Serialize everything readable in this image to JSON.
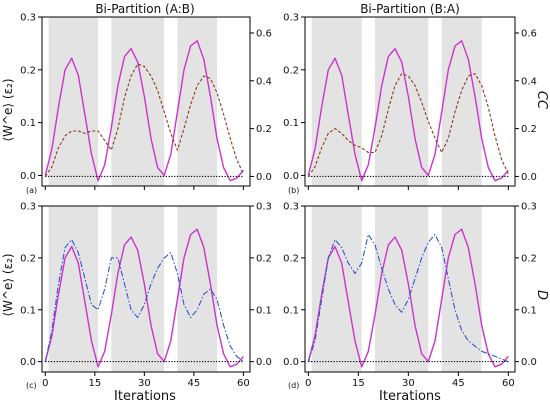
{
  "chart_data": [
    {
      "type": "line",
      "panel_tag": "(a)",
      "title": "Bi-Partition (A:B)",
      "xlabel": "",
      "ylabel": "⟨W^e⟩ (ε₂)",
      "y2label": "",
      "xlim": [
        -1,
        62
      ],
      "ylim": [
        -0.02,
        0.3
      ],
      "y2lim": [
        -0.04,
        0.6667
      ],
      "xticks": [
        0,
        15,
        30,
        45,
        60
      ],
      "xticklabels": [],
      "yticks": [
        0.0,
        0.1,
        0.2,
        0.3
      ],
      "yticklabels": [
        "0.0",
        "0.1",
        "0.2",
        "0.3"
      ],
      "y2ticks": [
        0.0,
        0.2,
        0.4,
        0.6
      ],
      "y2ticklabels": [
        "0.0",
        "0.2",
        "0.4",
        "0.6"
      ],
      "shaded_x_ranges": [
        [
          1,
          16
        ],
        [
          20,
          36
        ],
        [
          40,
          52
        ]
      ],
      "series": [
        {
          "axis": "left",
          "style": "solid",
          "color": "#cc33cc",
          "x": [
            0,
            2,
            4,
            6,
            8,
            10,
            12,
            14,
            16,
            18,
            20,
            22,
            24,
            26,
            28,
            30,
            32,
            34,
            36,
            38,
            40,
            42,
            44,
            46,
            48,
            50,
            52,
            54,
            56,
            58,
            60
          ],
          "y": [
            0.0,
            0.05,
            0.13,
            0.2,
            0.222,
            0.19,
            0.115,
            0.04,
            -0.01,
            0.02,
            0.09,
            0.17,
            0.225,
            0.24,
            0.215,
            0.15,
            0.07,
            0.015,
            0.0,
            0.04,
            0.12,
            0.2,
            0.245,
            0.255,
            0.22,
            0.15,
            0.07,
            0.015,
            -0.01,
            -0.005,
            0.01
          ]
        },
        {
          "axis": "right",
          "style": "dashed",
          "color": "#8b3a1a",
          "x": [
            0,
            2,
            4,
            6,
            8,
            10,
            12,
            14,
            16,
            18,
            20,
            22,
            24,
            26,
            28,
            30,
            32,
            34,
            36,
            38,
            40,
            42,
            44,
            46,
            48,
            50,
            52,
            54,
            56,
            58,
            60
          ],
          "y": [
            0.0,
            0.04,
            0.12,
            0.17,
            0.19,
            0.19,
            0.18,
            0.19,
            0.19,
            0.15,
            0.11,
            0.2,
            0.33,
            0.42,
            0.47,
            0.46,
            0.42,
            0.36,
            0.27,
            0.18,
            0.11,
            0.2,
            0.3,
            0.38,
            0.42,
            0.41,
            0.35,
            0.26,
            0.16,
            0.07,
            0.01
          ]
        },
        {
          "axis": "right",
          "style": "dotted",
          "color": "#000000",
          "x": [
            0,
            60
          ],
          "y": [
            0.0,
            0.0
          ]
        }
      ]
    },
    {
      "type": "line",
      "panel_tag": "(b)",
      "title": "Bi-Partition (B:A)",
      "xlabel": "",
      "ylabel": "",
      "y2label": "CC",
      "xlim": [
        -1,
        62
      ],
      "ylim": [
        -0.02,
        0.3
      ],
      "y2lim": [
        -0.04,
        0.6667
      ],
      "xticks": [
        0,
        15,
        30,
        45,
        60
      ],
      "xticklabels": [],
      "yticks": [
        0.0,
        0.1,
        0.2,
        0.3
      ],
      "yticklabels": [
        "0.0",
        "0.1",
        "0.2",
        "0.3"
      ],
      "y2ticks": [
        0.0,
        0.2,
        0.4,
        0.6
      ],
      "y2ticklabels": [
        "0.0",
        "0.2",
        "0.4",
        "0.6"
      ],
      "shaded_x_ranges": [
        [
          1,
          16
        ],
        [
          20,
          36
        ],
        [
          40,
          52
        ]
      ],
      "series": [
        {
          "axis": "left",
          "style": "solid",
          "color": "#cc33cc",
          "x": [
            0,
            2,
            4,
            6,
            8,
            10,
            12,
            14,
            16,
            18,
            20,
            22,
            24,
            26,
            28,
            30,
            32,
            34,
            36,
            38,
            40,
            42,
            44,
            46,
            48,
            50,
            52,
            54,
            56,
            58,
            60
          ],
          "y": [
            0.0,
            0.05,
            0.13,
            0.2,
            0.222,
            0.19,
            0.115,
            0.04,
            -0.01,
            0.02,
            0.09,
            0.17,
            0.225,
            0.24,
            0.215,
            0.15,
            0.07,
            0.015,
            0.0,
            0.04,
            0.12,
            0.2,
            0.245,
            0.255,
            0.22,
            0.15,
            0.07,
            0.015,
            -0.01,
            -0.005,
            0.01
          ]
        },
        {
          "axis": "right",
          "style": "dashed",
          "color": "#8b3a1a",
          "x": [
            0,
            2,
            4,
            6,
            8,
            10,
            12,
            14,
            16,
            18,
            20,
            22,
            24,
            26,
            28,
            30,
            32,
            34,
            36,
            38,
            40,
            42,
            44,
            46,
            48,
            50,
            52,
            54,
            56,
            58,
            60
          ],
          "y": [
            0.0,
            0.04,
            0.12,
            0.18,
            0.2,
            0.18,
            0.15,
            0.13,
            0.12,
            0.1,
            0.1,
            0.17,
            0.28,
            0.38,
            0.43,
            0.42,
            0.38,
            0.31,
            0.23,
            0.16,
            0.1,
            0.16,
            0.27,
            0.36,
            0.42,
            0.43,
            0.38,
            0.29,
            0.17,
            0.07,
            0.01
          ]
        },
        {
          "axis": "right",
          "style": "dotted",
          "color": "#000000",
          "x": [
            0,
            60
          ],
          "y": [
            0.0,
            0.0
          ]
        }
      ]
    },
    {
      "type": "line",
      "panel_tag": "(c)",
      "title": "",
      "xlabel": "Iterations",
      "ylabel": "⟨W^e⟩ (ε₂)",
      "y2label": "",
      "xlim": [
        -1,
        62
      ],
      "ylim": [
        -0.02,
        0.3
      ],
      "y2lim": [
        -0.02,
        0.3
      ],
      "xticks": [
        0,
        15,
        30,
        45,
        60
      ],
      "xticklabels": [
        "0",
        "15",
        "30",
        "45",
        "60"
      ],
      "yticks": [
        0.0,
        0.1,
        0.2,
        0.3
      ],
      "yticklabels": [
        "0.0",
        "0.1",
        "0.2",
        "0.3"
      ],
      "y2ticks": [
        0.0,
        0.1,
        0.2,
        0.3
      ],
      "y2ticklabels": [
        "0.0",
        "0.1",
        "0.2",
        "0.3"
      ],
      "shaded_x_ranges": [
        [
          1,
          16
        ],
        [
          20,
          36
        ],
        [
          40,
          52
        ]
      ],
      "series": [
        {
          "axis": "left",
          "style": "solid",
          "color": "#cc33cc",
          "x": [
            0,
            2,
            4,
            6,
            8,
            10,
            12,
            14,
            16,
            18,
            20,
            22,
            24,
            26,
            28,
            30,
            32,
            34,
            36,
            38,
            40,
            42,
            44,
            46,
            48,
            50,
            52,
            54,
            56,
            58,
            60
          ],
          "y": [
            0.0,
            0.05,
            0.13,
            0.2,
            0.222,
            0.19,
            0.115,
            0.04,
            -0.01,
            0.02,
            0.09,
            0.17,
            0.225,
            0.24,
            0.215,
            0.15,
            0.07,
            0.015,
            0.0,
            0.04,
            0.12,
            0.2,
            0.245,
            0.255,
            0.22,
            0.15,
            0.07,
            0.015,
            -0.01,
            -0.005,
            0.01
          ]
        },
        {
          "axis": "right",
          "style": "dashdot",
          "color": "#3355cc",
          "x": [
            0,
            2,
            4,
            6,
            8,
            10,
            12,
            14,
            16,
            18,
            20,
            22,
            24,
            26,
            28,
            30,
            32,
            34,
            36,
            38,
            40,
            42,
            44,
            46,
            48,
            50,
            52,
            54,
            56,
            58,
            60
          ],
          "y": [
            0.0,
            0.06,
            0.15,
            0.22,
            0.235,
            0.21,
            0.16,
            0.11,
            0.1,
            0.14,
            0.2,
            0.2,
            0.15,
            0.1,
            0.085,
            0.11,
            0.15,
            0.18,
            0.2,
            0.21,
            0.17,
            0.11,
            0.085,
            0.1,
            0.13,
            0.14,
            0.12,
            0.07,
            0.03,
            0.01,
            0.0
          ]
        },
        {
          "axis": "right",
          "style": "dotted",
          "color": "#000000",
          "x": [
            0,
            60
          ],
          "y": [
            0.0,
            0.0
          ]
        }
      ]
    },
    {
      "type": "line",
      "panel_tag": "(d)",
      "title": "",
      "xlabel": "Iterations",
      "ylabel": "",
      "y2label": "D",
      "xlim": [
        -1,
        62
      ],
      "ylim": [
        -0.02,
        0.3
      ],
      "y2lim": [
        -0.02,
        0.3
      ],
      "xticks": [
        0,
        15,
        30,
        45,
        60
      ],
      "xticklabels": [
        "0",
        "15",
        "30",
        "45",
        "60"
      ],
      "yticks": [
        0.0,
        0.1,
        0.2,
        0.3
      ],
      "yticklabels": [
        "0.0",
        "0.1",
        "0.2",
        "0.3"
      ],
      "y2ticks": [
        0.0,
        0.1,
        0.2,
        0.3
      ],
      "y2ticklabels": [
        "0.0",
        "0.1",
        "0.2",
        "0.3"
      ],
      "shaded_x_ranges": [
        [
          1,
          16
        ],
        [
          20,
          36
        ],
        [
          40,
          52
        ]
      ],
      "series": [
        {
          "axis": "left",
          "style": "solid",
          "color": "#cc33cc",
          "x": [
            0,
            2,
            4,
            6,
            8,
            10,
            12,
            14,
            16,
            18,
            20,
            22,
            24,
            26,
            28,
            30,
            32,
            34,
            36,
            38,
            40,
            42,
            44,
            46,
            48,
            50,
            52,
            54,
            56,
            58,
            60
          ],
          "y": [
            0.0,
            0.05,
            0.13,
            0.2,
            0.222,
            0.19,
            0.115,
            0.04,
            -0.01,
            0.02,
            0.09,
            0.17,
            0.225,
            0.24,
            0.215,
            0.15,
            0.07,
            0.015,
            0.0,
            0.04,
            0.12,
            0.2,
            0.245,
            0.255,
            0.22,
            0.15,
            0.07,
            0.015,
            -0.01,
            -0.005,
            0.01
          ]
        },
        {
          "axis": "right",
          "style": "dashdot",
          "color": "#3355cc",
          "x": [
            0,
            2,
            4,
            6,
            8,
            10,
            12,
            14,
            16,
            18,
            20,
            22,
            24,
            26,
            28,
            30,
            32,
            34,
            36,
            38,
            40,
            42,
            44,
            46,
            48,
            50,
            52,
            54,
            56,
            58,
            60
          ],
          "y": [
            0.0,
            0.04,
            0.12,
            0.2,
            0.235,
            0.22,
            0.19,
            0.17,
            0.19,
            0.245,
            0.225,
            0.18,
            0.14,
            0.11,
            0.095,
            0.12,
            0.16,
            0.2,
            0.23,
            0.245,
            0.22,
            0.16,
            0.1,
            0.06,
            0.04,
            0.03,
            0.02,
            0.015,
            0.01,
            0.005,
            0.0
          ]
        },
        {
          "axis": "right",
          "style": "dotted",
          "color": "#000000",
          "x": [
            0,
            60
          ],
          "y": [
            0.0,
            0.0
          ]
        }
      ]
    }
  ]
}
